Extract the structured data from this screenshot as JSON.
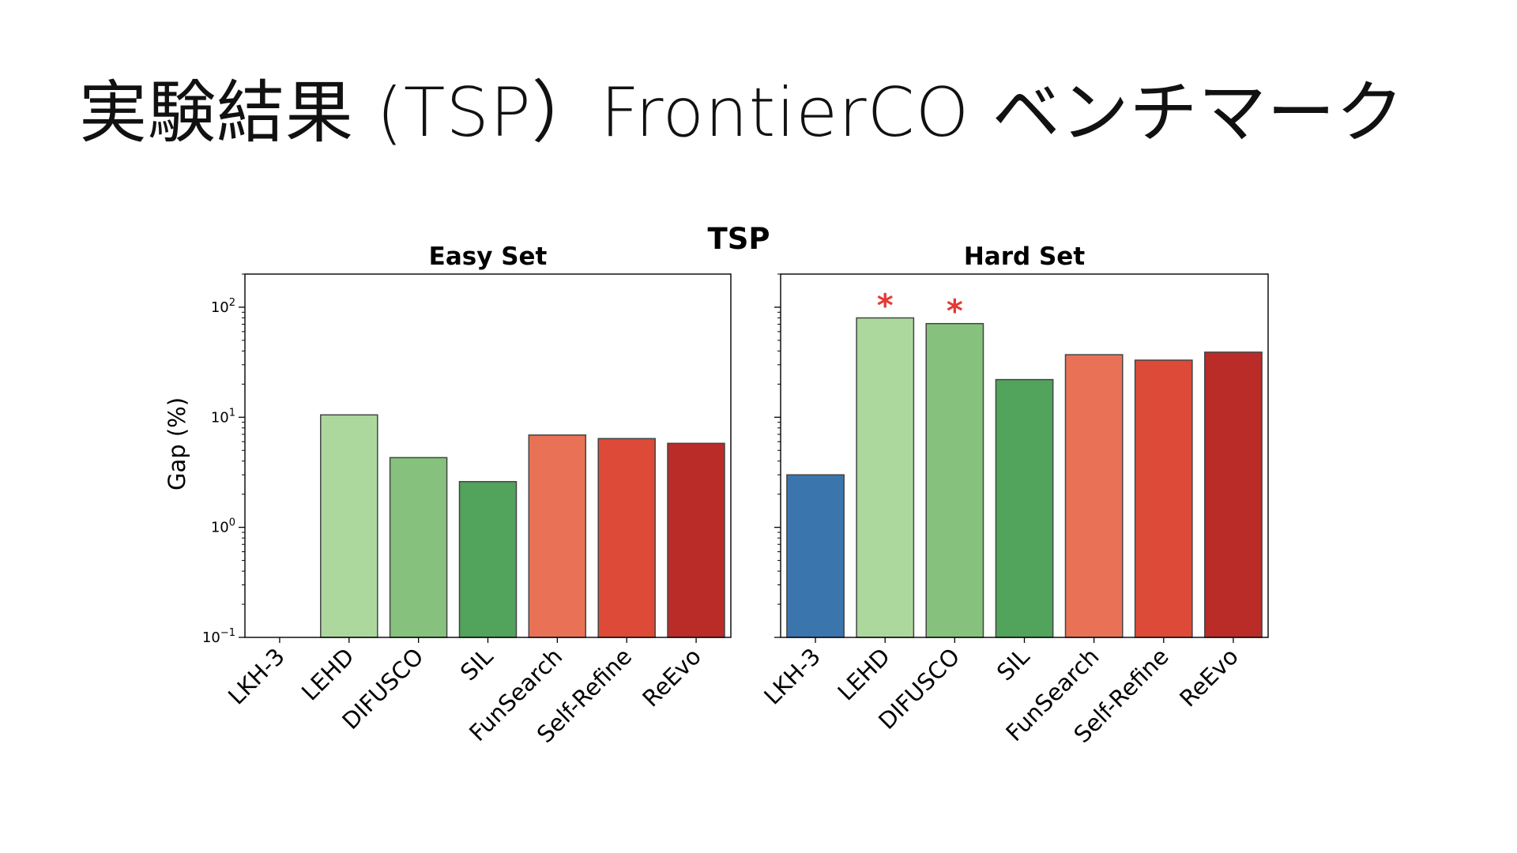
{
  "slide": {
    "title": "実験結果 (TSP）FrontierCO ベンチマーク"
  },
  "chart_data": {
    "type": "bar",
    "title": "TSP",
    "ylabel": "Gap (%)",
    "yscale": "log",
    "ylim": [
      0.1,
      200
    ],
    "yticks": [
      {
        "value": 0.1,
        "base": "10",
        "exp": "−1"
      },
      {
        "value": 1,
        "base": "10",
        "exp": "0"
      },
      {
        "value": 10,
        "base": "10",
        "exp": "1"
      },
      {
        "value": 100,
        "base": "10",
        "exp": "2"
      }
    ],
    "categories": [
      "LKH-3",
      "LEHD",
      "DIFUSCO",
      "SIL",
      "FunSearch",
      "Self-Refine",
      "ReEvo"
    ],
    "colors": [
      "#3a75ae",
      "#acd89e",
      "#86c27d",
      "#52a35b",
      "#e97256",
      "#dd4a38",
      "#b92c28"
    ],
    "marker": {
      "symbol": "*",
      "color": "#e53935"
    },
    "panels": [
      {
        "title": "Easy Set",
        "values": [
          0,
          10.5,
          4.3,
          2.6,
          6.9,
          6.4,
          5.8
        ],
        "marked": [
          false,
          false,
          false,
          false,
          false,
          false,
          false
        ]
      },
      {
        "title": "Hard Set",
        "values": [
          3.0,
          80,
          71,
          22,
          37,
          33,
          39
        ],
        "marked": [
          false,
          true,
          true,
          false,
          false,
          false,
          false
        ]
      }
    ]
  }
}
